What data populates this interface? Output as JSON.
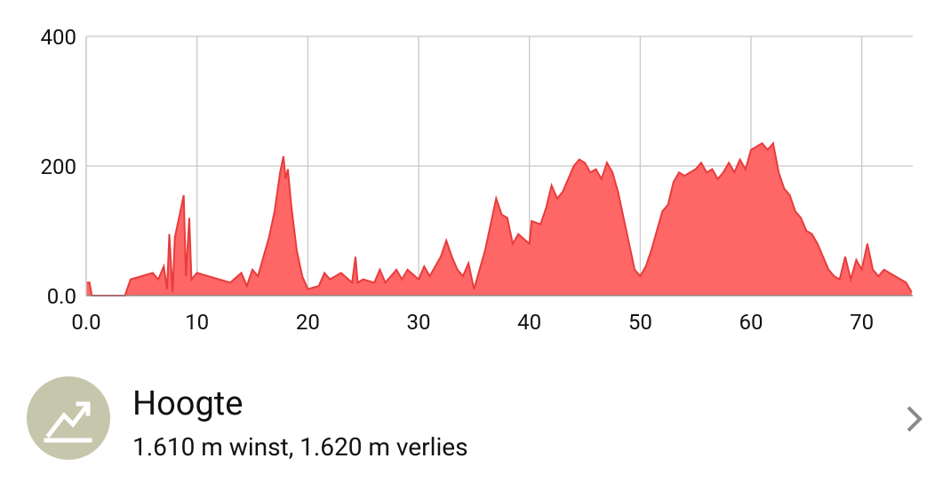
{
  "chart_data": {
    "type": "area",
    "color": "#ff6666",
    "line_color": "#e83c3c",
    "grid": true,
    "x": [
      0,
      0.3,
      0.5,
      3.5,
      4,
      5,
      6,
      6.5,
      7,
      7.3,
      7.5,
      7.8,
      8,
      8.5,
      8.8,
      9,
      9.3,
      9.5,
      10,
      11,
      12,
      13,
      14,
      14.5,
      15,
      15.5,
      16,
      16.5,
      17,
      17.5,
      17.8,
      18,
      18.2,
      18.5,
      19,
      19.5,
      20,
      21,
      21.5,
      22,
      23,
      24,
      24.3,
      24.5,
      25,
      26,
      26.5,
      27,
      28,
      28.5,
      29,
      30,
      30.5,
      31,
      32,
      32.5,
      33,
      33.5,
      34,
      34.5,
      35,
      35.5,
      36,
      36.5,
      37,
      37.5,
      38,
      38.5,
      39,
      40,
      40.2,
      41,
      41.5,
      42,
      42.5,
      43,
      44,
      44.5,
      45,
      45.5,
      46,
      46.5,
      47,
      47.5,
      48,
      48.5,
      49,
      49.5,
      50,
      50.5,
      51,
      51.5,
      52,
      52.5,
      53,
      53.5,
      54,
      55,
      55.5,
      56,
      56.5,
      57,
      57.5,
      58,
      58.5,
      59,
      59.5,
      60,
      60.5,
      61,
      61.5,
      62,
      62.5,
      63,
      63.5,
      64,
      64.5,
      65,
      65.5,
      66,
      66.5,
      67,
      67.5,
      68,
      68.5,
      69,
      69.5,
      70,
      70.5,
      71,
      71.5,
      72,
      73,
      74,
      74.5
    ],
    "values": [
      20,
      20,
      0,
      0,
      25,
      30,
      35,
      25,
      45,
      10,
      95,
      5,
      90,
      130,
      155,
      30,
      120,
      25,
      35,
      30,
      25,
      20,
      35,
      15,
      40,
      30,
      60,
      90,
      130,
      190,
      215,
      180,
      195,
      140,
      70,
      30,
      10,
      15,
      35,
      25,
      35,
      20,
      60,
      20,
      25,
      20,
      40,
      20,
      40,
      25,
      40,
      25,
      45,
      30,
      60,
      85,
      60,
      40,
      30,
      50,
      10,
      40,
      70,
      110,
      150,
      125,
      120,
      80,
      95,
      80,
      115,
      110,
      135,
      170,
      150,
      160,
      200,
      210,
      205,
      190,
      195,
      180,
      205,
      190,
      160,
      120,
      80,
      40,
      30,
      45,
      70,
      100,
      130,
      140,
      175,
      190,
      185,
      195,
      205,
      190,
      195,
      180,
      190,
      205,
      190,
      210,
      195,
      225,
      230,
      235,
      225,
      235,
      190,
      165,
      155,
      130,
      120,
      100,
      95,
      80,
      60,
      40,
      30,
      25,
      60,
      25,
      55,
      40,
      80,
      40,
      30,
      40,
      30,
      20,
      5
    ],
    "xlim": [
      0,
      74.6
    ],
    "ylim": [
      0,
      400
    ],
    "xticks": [
      {
        "value": 0,
        "label": "0.0"
      },
      10,
      20,
      30,
      40,
      50,
      60,
      70
    ],
    "yticks": [
      {
        "value": 0,
        "label": "0.0"
      },
      200,
      400
    ]
  },
  "list_item": {
    "title": "Hoogte",
    "subtitle": "1.610 m winst, 1.620 m verlies"
  }
}
